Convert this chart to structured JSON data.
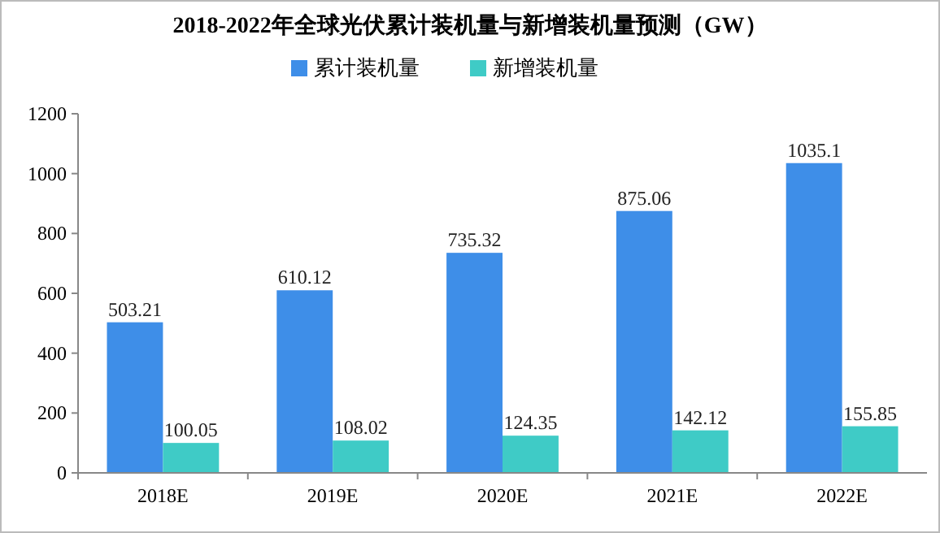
{
  "chart_data": {
    "type": "bar",
    "title": "2018-2022年全球光伏累计装机量与新增装机量预测（GW）",
    "categories": [
      "2018E",
      "2019E",
      "2020E",
      "2021E",
      "2022E"
    ],
    "series": [
      {
        "name": "累计装机量",
        "color": "#3e8ee8",
        "values": [
          503.21,
          610.12,
          735.32,
          875.06,
          1035.1
        ]
      },
      {
        "name": "新增装机量",
        "color": "#3fcbc6",
        "values": [
          100.05,
          108.02,
          124.35,
          142.12,
          155.85
        ]
      }
    ],
    "ylim": [
      0,
      1200
    ],
    "yticks": [
      0,
      200,
      400,
      600,
      800,
      1000,
      1200
    ],
    "grid": false,
    "legend": "top",
    "data_labels": true
  }
}
